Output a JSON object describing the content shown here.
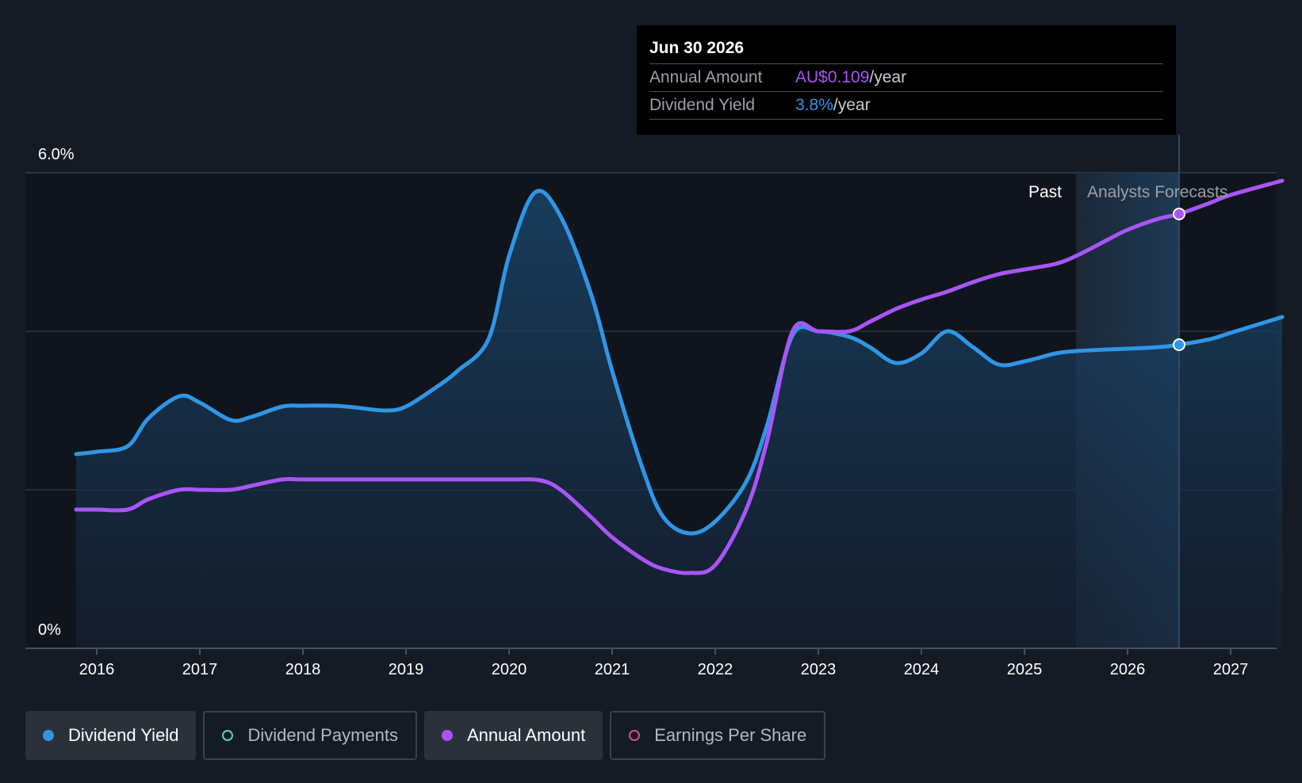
{
  "chart_data": {
    "type": "line",
    "y_axis": {
      "min": 0,
      "max": 6.0,
      "tick_labels": [
        "0%",
        "6.0%"
      ],
      "gridlines": [
        0,
        2,
        4,
        6
      ]
    },
    "x_axis": {
      "range": [
        2015.8,
        2027.5
      ],
      "tick_labels": [
        "2016",
        "2017",
        "2018",
        "2019",
        "2020",
        "2021",
        "2022",
        "2023",
        "2024",
        "2025",
        "2026",
        "2027"
      ]
    },
    "regions": {
      "past_label": "Past",
      "forecast_label": "Analysts Forecasts",
      "forecast_start": 2025.5,
      "marker_date": 2026.5
    },
    "series": [
      {
        "name": "Dividend Yield",
        "color": "#2f96e6",
        "unit": "%",
        "x": [
          2015.8,
          2016.0,
          2016.3,
          2016.5,
          2016.8,
          2017.0,
          2017.3,
          2017.5,
          2017.8,
          2018.0,
          2018.3,
          2018.5,
          2018.8,
          2019.0,
          2019.3,
          2019.5,
          2019.8,
          2020.0,
          2020.25,
          2020.5,
          2020.8,
          2021.0,
          2021.3,
          2021.5,
          2021.75,
          2022.0,
          2022.3,
          2022.5,
          2022.75,
          2023.0,
          2023.3,
          2023.5,
          2023.75,
          2024.0,
          2024.25,
          2024.5,
          2024.75,
          2025.0,
          2025.3,
          2025.5,
          2025.8,
          2026.0,
          2026.3,
          2026.5,
          2026.8,
          2027.0,
          2027.5
        ],
        "values": [
          2.45,
          2.48,
          2.55,
          2.9,
          3.18,
          3.1,
          2.88,
          2.92,
          3.05,
          3.06,
          3.06,
          3.04,
          3.0,
          3.05,
          3.3,
          3.5,
          3.9,
          4.95,
          5.75,
          5.45,
          4.45,
          3.5,
          2.25,
          1.65,
          1.45,
          1.6,
          2.1,
          2.8,
          3.95,
          4.0,
          3.93,
          3.8,
          3.6,
          3.72,
          4.0,
          3.8,
          3.58,
          3.62,
          3.72,
          3.75,
          3.77,
          3.78,
          3.8,
          3.83,
          3.9,
          3.98,
          4.18
        ]
      },
      {
        "name": "Annual Amount",
        "color": "#a855f7",
        "x": [
          2015.8,
          2016.0,
          2016.3,
          2016.5,
          2016.8,
          2017.0,
          2017.3,
          2017.5,
          2017.8,
          2018.0,
          2018.5,
          2019.0,
          2019.5,
          2020.0,
          2020.3,
          2020.5,
          2020.8,
          2021.0,
          2021.3,
          2021.5,
          2021.75,
          2022.0,
          2022.3,
          2022.5,
          2022.75,
          2023.0,
          2023.3,
          2023.5,
          2023.75,
          2024.0,
          2024.25,
          2024.5,
          2024.75,
          2025.0,
          2025.3,
          2025.5,
          2025.8,
          2026.0,
          2026.3,
          2026.5,
          2026.8,
          2027.0,
          2027.5
        ],
        "values": [
          1.75,
          1.75,
          1.75,
          1.88,
          2.0,
          2.0,
          2.0,
          2.05,
          2.13,
          2.13,
          2.13,
          2.13,
          2.13,
          2.13,
          2.12,
          2.0,
          1.65,
          1.4,
          1.12,
          1.0,
          0.95,
          1.05,
          1.75,
          2.6,
          4.0,
          4.0,
          4.0,
          4.12,
          4.28,
          4.4,
          4.5,
          4.62,
          4.72,
          4.78,
          4.85,
          4.95,
          5.15,
          5.28,
          5.42,
          5.48,
          5.62,
          5.72,
          5.9
        ]
      }
    ],
    "tooltip": {
      "date": "Jun 30 2026",
      "annual_label": "Annual Amount",
      "annual_value": "AU$0.109",
      "annual_unit": "/year",
      "yield_label": "Dividend Yield",
      "yield_value": "3.8%",
      "yield_unit": "/year"
    },
    "legend": [
      {
        "label": "Dividend Yield",
        "color": "#2f96e6",
        "active": true
      },
      {
        "label": "Dividend Payments",
        "color": "#4fd1c5",
        "active": false
      },
      {
        "label": "Annual Amount",
        "color": "#a855f7",
        "active": true
      },
      {
        "label": "Earnings Per Share",
        "color": "#d64f86",
        "active": false
      }
    ]
  }
}
